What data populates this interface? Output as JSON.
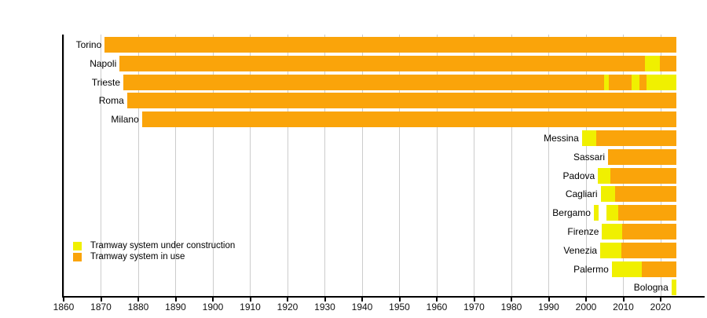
{
  "chart_data": {
    "type": "bar",
    "variant": "horizontal-gantt-timeline",
    "title": "",
    "description": "Timeline of tramway systems in Italian cities: periods under construction (yellow) and in use (orange)",
    "legend_position": "bottom-left inside plot",
    "grid": true,
    "colors": {
      "in_use": "#FAA40A",
      "construction": "#F0F000",
      "gridline": "#CCCCCC",
      "axis": "#000000",
      "background": "#FFFFFF"
    },
    "legend": [
      {
        "key": "construction",
        "label": "Tramway system under construction",
        "color": "#F0F000"
      },
      {
        "key": "in_use",
        "label": "Tramway system in use",
        "color": "#FAA40A"
      }
    ],
    "x_axis": {
      "min": 1860,
      "max_tick": 2020,
      "tick_step": 10,
      "ticks": [
        1860,
        1870,
        1880,
        1890,
        1900,
        1910,
        1920,
        1930,
        1940,
        1950,
        1960,
        1970,
        1980,
        1990,
        2000,
        2010,
        2020
      ],
      "data_end": 2024.2
    },
    "categories": [
      "Torino",
      "Napoli",
      "Trieste",
      "Roma",
      "Milano",
      "Messina",
      "Sassari",
      "Padova",
      "Cagliari",
      "Bergamo",
      "Firenze",
      "Venezia",
      "Palermo",
      "Bologna"
    ],
    "rows": [
      {
        "city": "Torino",
        "segments": [
          {
            "from": 1871,
            "to": 2024.2,
            "status": "in_use"
          }
        ]
      },
      {
        "city": "Napoli",
        "segments": [
          {
            "from": 1875,
            "to": 2015.8,
            "status": "in_use"
          },
          {
            "from": 2015.8,
            "to": 2019.7,
            "status": "construction"
          },
          {
            "from": 2019.7,
            "to": 2024.2,
            "status": "in_use"
          }
        ]
      },
      {
        "city": "Trieste",
        "segments": [
          {
            "from": 1876,
            "to": 2004.9,
            "status": "in_use"
          },
          {
            "from": 2004.9,
            "to": 2006.1,
            "status": "construction"
          },
          {
            "from": 2006.1,
            "to": 2012.3,
            "status": "in_use"
          },
          {
            "from": 2012.3,
            "to": 2014.3,
            "status": "construction"
          },
          {
            "from": 2014.3,
            "to": 2016.2,
            "status": "in_use"
          },
          {
            "from": 2016.2,
            "to": 2024.2,
            "status": "construction"
          }
        ]
      },
      {
        "city": "Roma",
        "segments": [
          {
            "from": 1877,
            "to": 2024.2,
            "status": "in_use"
          }
        ]
      },
      {
        "city": "Milano",
        "segments": [
          {
            "from": 1881,
            "to": 2024.2,
            "status": "in_use"
          }
        ]
      },
      {
        "city": "Messina",
        "segments": [
          {
            "from": 1998.9,
            "to": 2002.8,
            "status": "construction"
          },
          {
            "from": 2002.8,
            "to": 2024.2,
            "status": "in_use"
          }
        ]
      },
      {
        "city": "Sassari",
        "segments": [
          {
            "from": 2005.9,
            "to": 2024.2,
            "status": "in_use"
          }
        ]
      },
      {
        "city": "Padova",
        "segments": [
          {
            "from": 2003.2,
            "to": 2006.6,
            "status": "construction"
          },
          {
            "from": 2006.6,
            "to": 2024.2,
            "status": "in_use"
          }
        ]
      },
      {
        "city": "Cagliari",
        "segments": [
          {
            "from": 2003.9,
            "to": 2007.8,
            "status": "construction"
          },
          {
            "from": 2007.8,
            "to": 2024.2,
            "status": "in_use"
          }
        ]
      },
      {
        "city": "Bergamo",
        "segments": [
          {
            "from": 2002.1,
            "to": 2003.3,
            "status": "construction"
          },
          {
            "from": 2005.4,
            "to": 2008.6,
            "status": "construction"
          },
          {
            "from": 2008.6,
            "to": 2024.2,
            "status": "in_use"
          }
        ]
      },
      {
        "city": "Firenze",
        "segments": [
          {
            "from": 2004.3,
            "to": 2009.6,
            "status": "construction"
          },
          {
            "from": 2009.6,
            "to": 2024.2,
            "status": "in_use"
          }
        ]
      },
      {
        "city": "Venezia",
        "segments": [
          {
            "from": 2003.8,
            "to": 2009.5,
            "status": "construction"
          },
          {
            "from": 2009.5,
            "to": 2024.2,
            "status": "in_use"
          }
        ]
      },
      {
        "city": "Palermo",
        "segments": [
          {
            "from": 2006.9,
            "to": 2014.9,
            "status": "construction"
          },
          {
            "from": 2014.9,
            "to": 2024.2,
            "status": "in_use"
          }
        ]
      },
      {
        "city": "Bologna",
        "segments": [
          {
            "from": 2022.9,
            "to": 2024.2,
            "status": "construction"
          }
        ]
      }
    ]
  }
}
